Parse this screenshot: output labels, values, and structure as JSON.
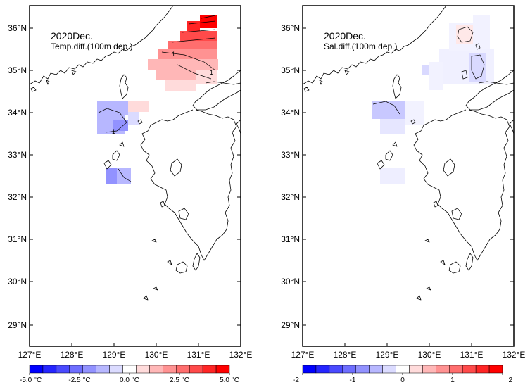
{
  "panels": [
    {
      "id": "temp",
      "title": "2020Dec.",
      "subtitle": "Temp.diff.(100m dep.)",
      "lat_labels": [
        "36°N",
        "35°N",
        "34°N",
        "33°N",
        "32°N",
        "31°N",
        "30°N",
        "29°N"
      ],
      "lon_labels": [
        "127°E",
        "128°E",
        "129°E",
        "130°E",
        "131°E",
        "132°E"
      ],
      "colorbar": {
        "labels": [
          "-5.0 °C",
          "-2.5 °C",
          "0.0 °C",
          "2.5 °C",
          "5.0 °C"
        ],
        "colors": [
          "#0000ff",
          "#2525ff",
          "#4a4aff",
          "#6e6eff",
          "#9292ff",
          "#b7b7ff",
          "#dbdbff",
          "#ffffff",
          "#ffdbdb",
          "#ffb7b7",
          "#ff9292",
          "#ff6e6e",
          "#ff4a4a",
          "#ff2525",
          "#ff0000"
        ]
      },
      "contour_labels": [
        "1",
        "1",
        "-1"
      ]
    },
    {
      "id": "sal",
      "title": "2020Dec.",
      "subtitle": "Sal.diff.(100m dep.)",
      "lat_labels": [
        "36°N",
        "35°N",
        "34°N",
        "33°N",
        "32°N",
        "31°N",
        "30°N",
        "29°N"
      ],
      "lon_labels": [
        "127°E",
        "128°E",
        "129°E",
        "130°E",
        "131°E",
        "132°E"
      ],
      "colorbar": {
        "labels": [
          "-2",
          "-1",
          "0",
          "1",
          "2"
        ],
        "colors": [
          "#0000ff",
          "#2525ff",
          "#4a4aff",
          "#6e6eff",
          "#9292ff",
          "#b7b7ff",
          "#dbdbff",
          "#ffffff",
          "#ffdbdb",
          "#ffb7b7",
          "#ff9292",
          "#ff6e6e",
          "#ff4a4a",
          "#ff2525",
          "#ff0000"
        ]
      },
      "contour_labels": []
    }
  ]
}
